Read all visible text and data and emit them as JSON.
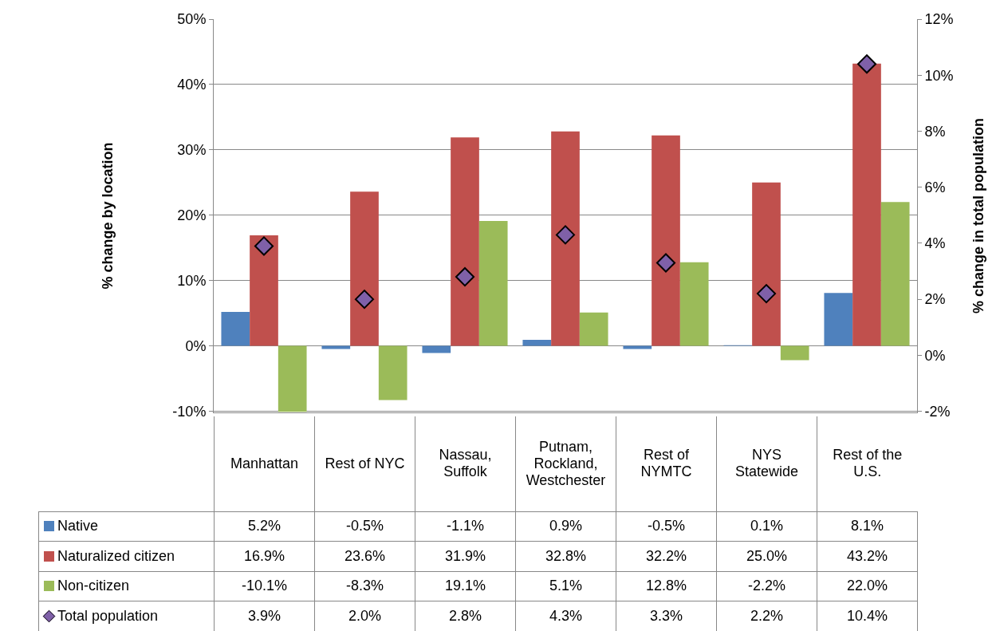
{
  "chart_data": {
    "type": "bar",
    "categories": [
      "Manhattan",
      "Rest of NYC",
      "Nassau, Suffolk",
      "Putnam, Rockland, Westchester",
      "Rest of NYMTC",
      "NYS Statewide",
      "Rest of the U.S."
    ],
    "series": [
      {
        "name": "Native",
        "color": "#4f81bd",
        "values": [
          5.2,
          -0.5,
          -1.1,
          0.9,
          -0.5,
          0.1,
          8.1
        ],
        "value_labels": [
          "5.2%",
          "-0.5%",
          "-1.1%",
          "0.9%",
          "-0.5%",
          "0.1%",
          "8.1%"
        ]
      },
      {
        "name": "Naturalized citizen",
        "color": "#c0504d",
        "values": [
          16.9,
          23.6,
          31.9,
          32.8,
          32.2,
          25.0,
          43.2
        ],
        "value_labels": [
          "16.9%",
          "23.6%",
          "31.9%",
          "32.8%",
          "32.2%",
          "25.0%",
          "43.2%"
        ]
      },
      {
        "name": "Non-citizen",
        "color": "#9bbb59",
        "values": [
          -10.1,
          -8.3,
          19.1,
          5.1,
          12.8,
          -2.2,
          22.0
        ],
        "value_labels": [
          "-10.1%",
          "-8.3%",
          "19.1%",
          "5.1%",
          "12.8%",
          "-2.2%",
          "22.0%"
        ]
      },
      {
        "name": "Total population",
        "type": "scatter",
        "axis": "y2",
        "marker": "diamond",
        "color": "#7f60a8",
        "values": [
          3.9,
          2.0,
          2.8,
          4.3,
          3.3,
          2.2,
          10.4
        ],
        "value_labels": [
          "3.9%",
          "2.0%",
          "2.8%",
          "4.3%",
          "3.3%",
          "2.2%",
          "10.4%"
        ]
      }
    ],
    "ylabel": "% change by location",
    "y2label": "% change in total population",
    "ylim": [
      -10.2,
      50
    ],
    "yticks": [
      {
        "value": -10,
        "label": "-10%"
      },
      {
        "value": 0,
        "label": "0%"
      },
      {
        "value": 10,
        "label": "10%"
      },
      {
        "value": 20,
        "label": "20%"
      },
      {
        "value": 30,
        "label": "30%"
      },
      {
        "value": 40,
        "label": "40%"
      },
      {
        "value": 50,
        "label": "50%"
      }
    ],
    "y2lim": [
      -2.04,
      12
    ],
    "y2ticks": [
      {
        "value": -2,
        "label": "-2%"
      },
      {
        "value": 0,
        "label": "0%"
      },
      {
        "value": 2,
        "label": "2%"
      },
      {
        "value": 4,
        "label": "4%"
      },
      {
        "value": 6,
        "label": "6%"
      },
      {
        "value": 8,
        "label": "8%"
      },
      {
        "value": 10,
        "label": "10%"
      },
      {
        "value": 12,
        "label": "12%"
      }
    ],
    "grid": "y",
    "legend": "bottom"
  }
}
